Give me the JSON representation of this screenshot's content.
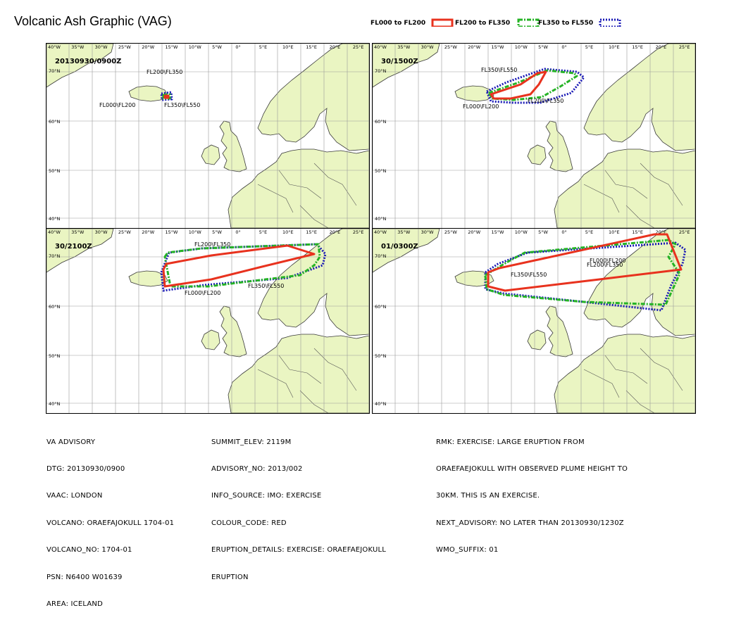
{
  "title": "Volcanic Ash Graphic (VAG)",
  "legend": [
    {
      "label": "FL000 to FL200",
      "color": "#e8321e",
      "style": "solid"
    },
    {
      "label": "FL200 to FL350",
      "color": "#25b325",
      "style": "dashdot"
    },
    {
      "label": "FL350 to FL550",
      "color": "#1818b5",
      "style": "dotted"
    }
  ],
  "lon_labels": [
    "40°W",
    "35°W",
    "30°W",
    "25°W",
    "20°W",
    "15°W",
    "10°W",
    "5°W",
    "0°",
    "5°E",
    "10°E",
    "15°E",
    "20°E",
    "25°E"
  ],
  "lat_labels": [
    "70°N",
    "60°N",
    "50°N",
    "40°N"
  ],
  "panels": [
    {
      "label": "20130930/0900Z",
      "annotations": [
        "FL200\\FL350",
        "FL000\\FL200",
        "FL350\\FL550"
      ]
    },
    {
      "label": "30/1500Z",
      "annotations": [
        "FL350\\FL550",
        "FL200\\FL350",
        "FL000\\FL200"
      ]
    },
    {
      "label": "30/2100Z",
      "annotations": [
        "FL200\\FL350",
        "FL350\\FL550",
        "FL000\\FL200"
      ]
    },
    {
      "label": "01/0300Z",
      "annotations": [
        "FL350\\FL550",
        "FL000\\FL200",
        "FL200\\FL350"
      ]
    }
  ],
  "advisory": {
    "col1": [
      "VA ADVISORY",
      "DTG: 20130930/0900",
      "VAAC: LONDON",
      "VOLCANO: ORAEFAJOKULL 1704-01",
      "VOLCANO_NO: 1704-01",
      "PSN: N6400 W01639",
      "AREA: ICELAND"
    ],
    "col2": [
      "SUMMIT_ELEV: 2119M",
      "ADVISORY_NO: 2013/002",
      "INFO_SOURCE: IMO: EXERCISE",
      "COLOUR_CODE: RED",
      "ERUPTION_DETAILS: EXERCISE: ORAEFAEJOKULL",
      "ERUPTION"
    ],
    "col3": [
      "RMK: EXERCISE: LARGE ERUPTION FROM",
      "ORAEFAEJOKULL WITH OBSERVED PLUME HEIGHT TO",
      "30KM. THIS IS AN EXERCISE.",
      "NEXT_ADVISORY: NO LATER THAN 20130930/1230Z",
      "WMO_SUFFIX: 01"
    ]
  }
}
